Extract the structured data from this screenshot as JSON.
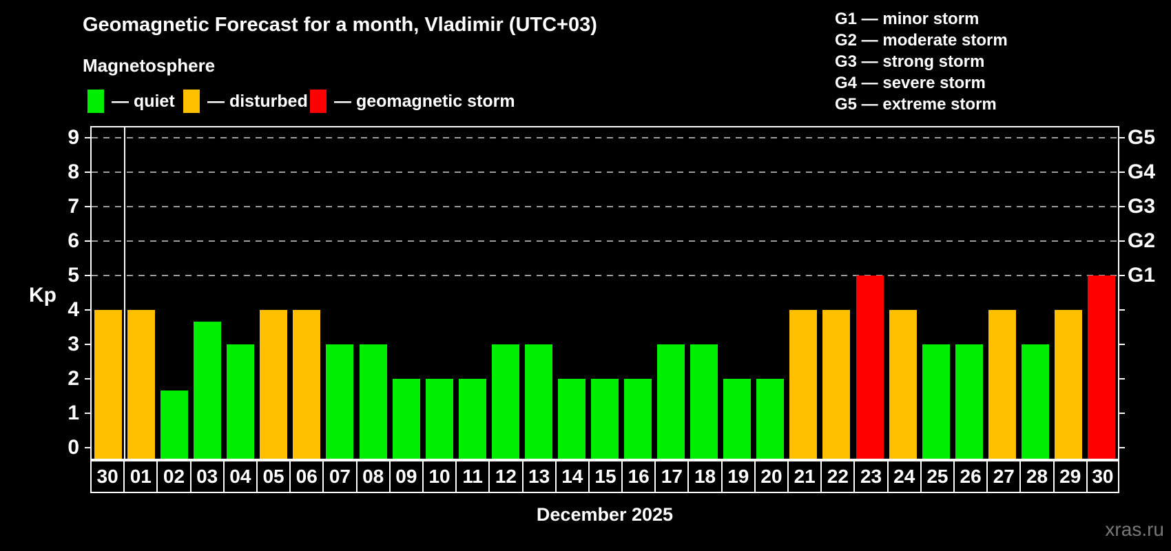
{
  "header": {
    "title": "Geomagnetic Forecast for a month, Vladimir (UTC+03)",
    "subtitle": "Magnetosphere"
  },
  "legend": {
    "items": [
      {
        "key": "quiet",
        "label": "— quiet",
        "color": "#00ee00"
      },
      {
        "key": "disturbed",
        "label": "— disturbed",
        "color": "#ffc000"
      },
      {
        "key": "storm",
        "label": "— geomagnetic storm",
        "color": "#ff0000"
      }
    ]
  },
  "g_legend": {
    "items": [
      "G1 — minor storm",
      "G2 — moderate storm",
      "G3 — strong storm",
      "G4 — severe storm",
      "G5 — extreme storm"
    ]
  },
  "axes": {
    "y_label": "Kp",
    "y_ticks": [
      0,
      1,
      2,
      3,
      4,
      5,
      6,
      7,
      8,
      9
    ],
    "right_labels": [
      {
        "text": "G1",
        "kp": 5
      },
      {
        "text": "G2",
        "kp": 6
      },
      {
        "text": "G3",
        "kp": 7
      },
      {
        "text": "G4",
        "kp": 8
      },
      {
        "text": "G5",
        "kp": 9
      }
    ],
    "gridline_levels": [
      5,
      6,
      7,
      8,
      9
    ],
    "x_label": "December 2025"
  },
  "watermark": "xras.ru",
  "colors": {
    "background": "#000000",
    "text": "#ffffff",
    "axis": "#ffffff",
    "grid": "#9d9d9d",
    "quiet": "#00ee00",
    "disturbed": "#ffc000",
    "storm": "#ff0000",
    "watermark": "#787878"
  },
  "chart_data": {
    "type": "bar",
    "title": "Geomagnetic Forecast for a month, Vladimir (UTC+03)",
    "xlabel": "December 2025",
    "ylabel": "Kp",
    "ylim": [
      0,
      9.3
    ],
    "grid": "horizontal dashed lines at Kp 5,6,7,8,9 (G1–G5 levels)",
    "legend_position": "top",
    "separator_after_index": 0,
    "categories": [
      "30",
      "01",
      "02",
      "03",
      "04",
      "05",
      "06",
      "07",
      "08",
      "09",
      "10",
      "11",
      "12",
      "13",
      "14",
      "15",
      "16",
      "17",
      "18",
      "19",
      "20",
      "21",
      "22",
      "23",
      "24",
      "25",
      "26",
      "27",
      "28",
      "29",
      "30"
    ],
    "values": [
      4,
      4,
      1.67,
      3.67,
      3,
      4,
      4,
      3,
      3,
      2,
      2,
      2,
      3,
      3,
      2,
      2,
      2,
      3,
      3,
      2,
      2,
      4,
      4,
      5,
      4,
      3,
      3,
      4,
      3,
      4,
      5
    ],
    "statuses": [
      "disturbed",
      "disturbed",
      "quiet",
      "quiet",
      "quiet",
      "disturbed",
      "disturbed",
      "quiet",
      "quiet",
      "quiet",
      "quiet",
      "quiet",
      "quiet",
      "quiet",
      "quiet",
      "quiet",
      "quiet",
      "quiet",
      "quiet",
      "quiet",
      "quiet",
      "disturbed",
      "disturbed",
      "storm",
      "disturbed",
      "quiet",
      "quiet",
      "disturbed",
      "quiet",
      "disturbed",
      "storm"
    ]
  }
}
